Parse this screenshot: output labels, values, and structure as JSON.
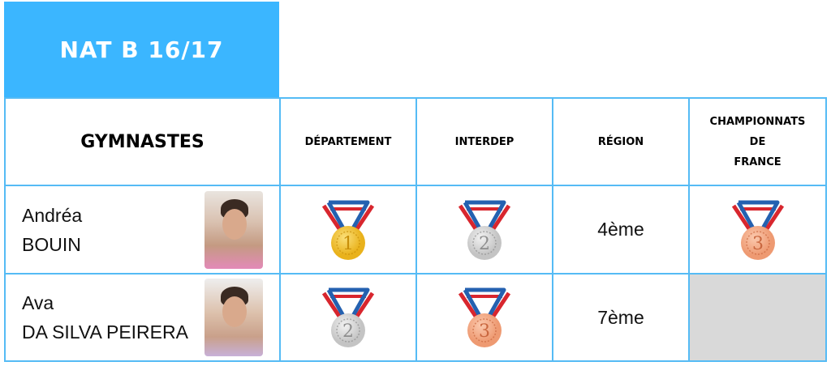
{
  "title": "NAT B 16/17",
  "headers": {
    "gymnastes": "GYMNASTES",
    "departement": "DÉPARTEMENT",
    "interdep": "INTERDEP",
    "region": "RÉGION",
    "france_1": "CHAMPIONNATS",
    "france_2": "DE",
    "france_3": "FRANCE"
  },
  "rows": [
    {
      "first": "Andréa",
      "last": "BOUIN",
      "departement": {
        "medal": "gold",
        "number": "1"
      },
      "interdep": {
        "medal": "silver",
        "number": "2"
      },
      "region": "4ème",
      "france": {
        "medal": "bronze",
        "number": "3"
      }
    },
    {
      "first": "Ava",
      "last": "DA SILVA PEIRERA",
      "departement": {
        "medal": "silver",
        "number": "2"
      },
      "interdep": {
        "medal": "bronze",
        "number": "3"
      },
      "region": "7ème",
      "france": null
    }
  ],
  "colors": {
    "header_bg": "#3bb6ff",
    "border": "#55bbf5",
    "gold": "#f2c230",
    "silver": "#c8c8c8",
    "bronze": "#f0a07a",
    "empty_cell": "#d9d9d9"
  }
}
